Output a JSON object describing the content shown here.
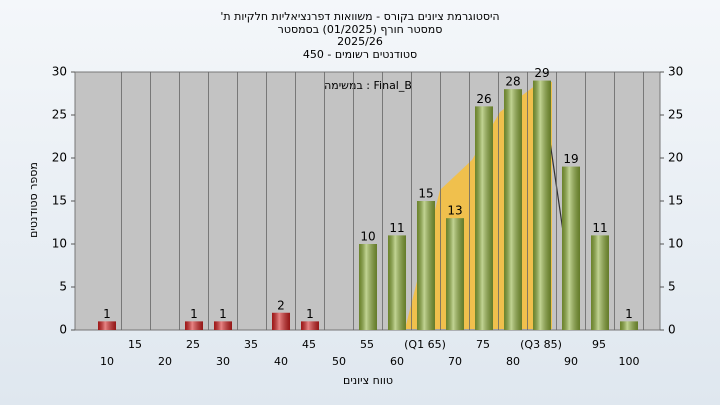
{
  "chart_data": {
    "type": "bar",
    "title": "היסטוגרמת ציונים בקורס - משוואות דפרנציאליות חלקיות ת'",
    "subtitle": [
      "סמסטר חורף  (01/2025)  בסמסטר",
      "2025/26",
      "סטודנטים רשומים - 450"
    ],
    "annotation": "במשימה : Final_B",
    "x_label": "טווח ציונים",
    "y_label": "מספר סטודנטים",
    "categories": [
      "10",
      "15",
      "20",
      "25",
      "30",
      "35",
      "40",
      "45",
      "50",
      "55",
      "60",
      "(Q1 65)",
      "70",
      "75",
      "80",
      "(Q3 85)",
      "90",
      "95",
      "100"
    ],
    "values": [
      1,
      0,
      0,
      1,
      1,
      0,
      2,
      1,
      0,
      10,
      11,
      15,
      13,
      26,
      28,
      29,
      19,
      11,
      1
    ],
    "bar_colors": [
      "#d42020",
      "#d42020",
      "#d42020",
      "#d42020",
      "#d42020",
      "#d42020",
      "#d42020",
      "#d42020",
      "#d42020",
      "#8fb03a",
      "#8fb03a",
      "#8fb03a",
      "#8fb03a",
      "#8fb03a",
      "#8fb03a",
      "#8fb03a",
      "#8fb03a",
      "#8fb03a",
      "#8fb03a"
    ],
    "ylim": [
      0,
      30
    ],
    "yticks": [
      0,
      5,
      10,
      15,
      20,
      25,
      30
    ],
    "y2lim": [
      0,
      30
    ],
    "y2ticks": [
      0,
      5,
      10,
      15,
      20,
      25,
      30
    ],
    "grid": true
  }
}
